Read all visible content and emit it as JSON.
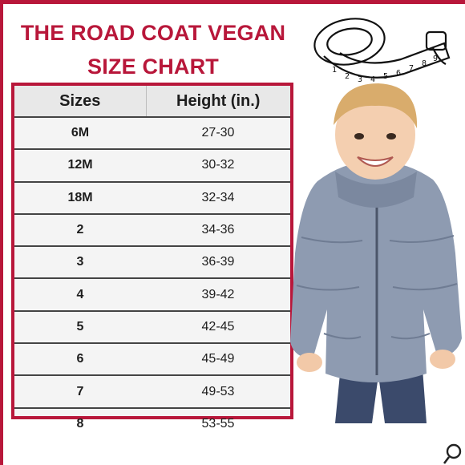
{
  "title_line1": "THE ROAD COAT VEGAN",
  "title_line2": "SIZE CHART",
  "table": {
    "headers": [
      "Sizes",
      "Height (in.)"
    ],
    "rows": [
      [
        "6M",
        "27-30"
      ],
      [
        "12M",
        "30-32"
      ],
      [
        "18M",
        "32-34"
      ],
      [
        "2",
        "34-36"
      ],
      [
        "3",
        "36-39"
      ],
      [
        "4",
        "39-42"
      ],
      [
        "5",
        "42-45"
      ],
      [
        "6",
        "45-49"
      ],
      [
        "7",
        "49-53"
      ],
      [
        "8",
        "53-55"
      ]
    ]
  },
  "tape_numbers": [
    "1",
    "2",
    "3",
    "4",
    "5",
    "6",
    "7",
    "8",
    "9"
  ],
  "colors": {
    "accent": "#b8173a",
    "jacket": "#8e9bb1",
    "pants": "#3b4a6b"
  },
  "icons": [
    "measuring-tape-icon",
    "magnifier-icon"
  ]
}
